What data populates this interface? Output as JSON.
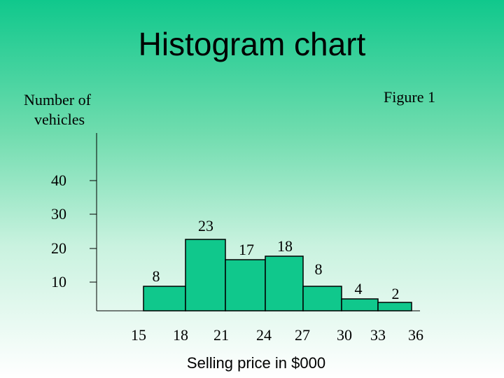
{
  "title": "Histogram chart",
  "chart_data": {
    "type": "bar",
    "title": "Histogram chart",
    "subtitle": "Figure 1",
    "ylabel_line1": "Number of",
    "ylabel_line2": "vehicles",
    "xlabel": "Selling price in $000",
    "y_ticks": [
      "10",
      "20",
      "30",
      "40"
    ],
    "x_ticks": [
      "15",
      "18",
      "21",
      "24",
      "27",
      "30",
      "33",
      "36"
    ],
    "bins": [
      {
        "from": 15,
        "to": 18,
        "value": 8
      },
      {
        "from": 18,
        "to": 21,
        "value": 23
      },
      {
        "from": 21,
        "to": 24,
        "value": 17
      },
      {
        "from": 24,
        "to": 27,
        "value": 18
      },
      {
        "from": 27,
        "to": 30,
        "value": 8
      },
      {
        "from": 30,
        "to": 33,
        "value": 4
      },
      {
        "from": 33,
        "to": 36,
        "value": 2
      }
    ],
    "bar_color": "#10c88c"
  }
}
